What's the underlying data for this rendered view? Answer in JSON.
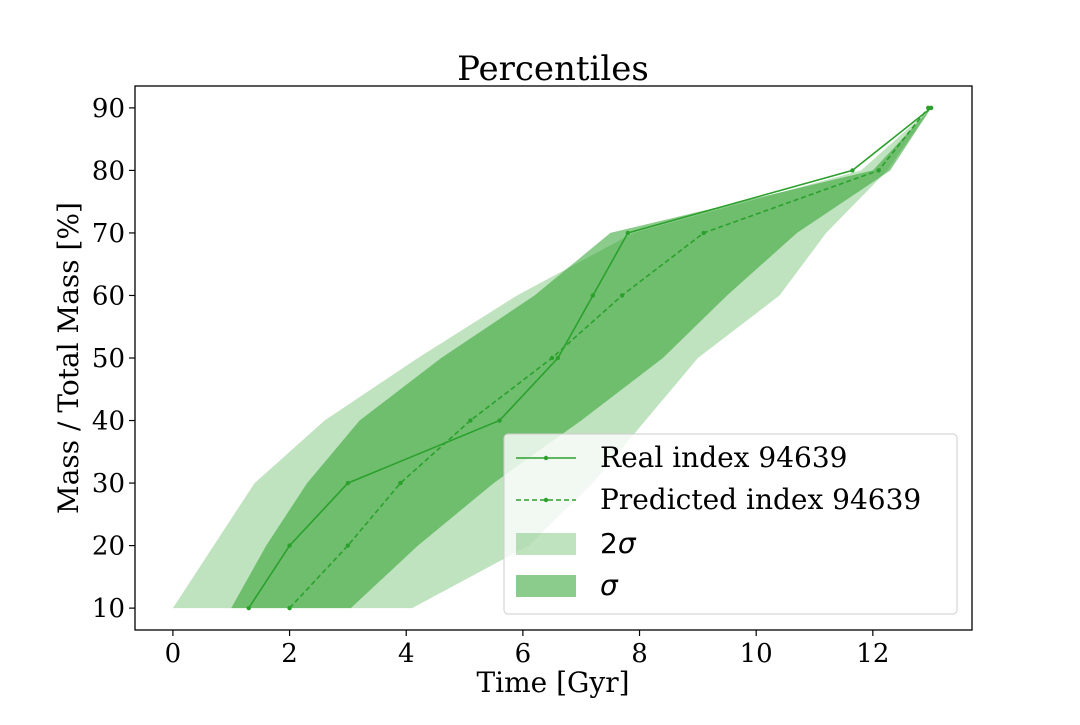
{
  "chart_data": {
    "type": "line",
    "title": "Percentiles",
    "xlabel": "Time [Gyr]",
    "ylabel": "Mass / Total Mass [%]",
    "xlim": [
      -0.65,
      13.7
    ],
    "ylim": [
      6.5,
      93.5
    ],
    "xticks": [
      0,
      2,
      4,
      6,
      8,
      10,
      12
    ],
    "yticks": [
      10,
      20,
      30,
      40,
      50,
      60,
      70,
      80,
      90
    ],
    "grid": false,
    "legend_position": "bottom-right",
    "colors": {
      "line": "#2ca02c",
      "band_2sigma": "#2ca02c",
      "band_sigma": "#2ca02c"
    },
    "series": [
      {
        "name": "Real index 94639",
        "style": "solid",
        "x": [
          1.3,
          2.0,
          3.0,
          5.6,
          6.6,
          7.2,
          7.8,
          11.65,
          13.0
        ],
        "y": [
          10,
          20,
          30,
          40,
          50,
          60,
          70,
          80,
          90
        ]
      },
      {
        "name": "Predicted index 94639",
        "style": "dashed",
        "x": [
          2.0,
          3.0,
          3.9,
          5.1,
          6.5,
          7.7,
          9.1,
          12.1,
          12.95
        ],
        "y": [
          10,
          20,
          30,
          40,
          50,
          60,
          70,
          80,
          90
        ]
      }
    ],
    "bands": [
      {
        "name": "2σ",
        "label_main": "2",
        "label_sym": "σ",
        "opacity": 0.3,
        "lower_x": [
          4.1,
          6.1,
          7.2,
          8.1,
          9.0,
          10.4,
          11.2,
          12.25,
          13.0
        ],
        "upper_x": [
          0.0,
          0.7,
          1.4,
          2.6,
          4.2,
          5.9,
          7.9,
          11.8,
          13.0
        ],
        "y": [
          10,
          20,
          30,
          40,
          50,
          60,
          70,
          80,
          90
        ]
      },
      {
        "name": "σ",
        "label_main": "",
        "label_sym": "σ",
        "opacity": 0.55,
        "lower_x": [
          3.05,
          4.2,
          5.5,
          7.0,
          8.4,
          9.5,
          10.7,
          12.3,
          13.0
        ],
        "upper_x": [
          1.0,
          1.6,
          2.3,
          3.2,
          4.6,
          6.2,
          7.5,
          12.0,
          13.0
        ],
        "y": [
          10,
          20,
          30,
          40,
          50,
          60,
          70,
          80,
          90
        ]
      }
    ]
  }
}
